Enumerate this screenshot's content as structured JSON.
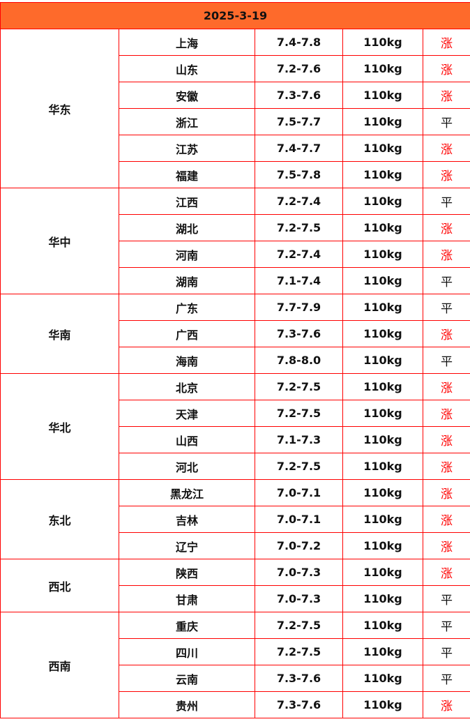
{
  "header": {
    "date": "2025-3-19"
  },
  "colors": {
    "header_bg": "#fe6a2b",
    "border": "#ff0000",
    "up": "#ff0000",
    "flat": "#111111"
  },
  "groups": [
    {
      "region": "华东",
      "rows": [
        {
          "province": "上海",
          "price": "7.4-7.8",
          "weight": "110kg",
          "trend": "涨"
        },
        {
          "province": "山东",
          "price": "7.2-7.6",
          "weight": "110kg",
          "trend": "涨"
        },
        {
          "province": "安徽",
          "price": "7.3-7.6",
          "weight": "110kg",
          "trend": "涨"
        },
        {
          "province": "浙江",
          "price": "7.5-7.7",
          "weight": "110kg",
          "trend": "平"
        },
        {
          "province": "江苏",
          "price": "7.4-7.7",
          "weight": "110kg",
          "trend": "涨"
        },
        {
          "province": "福建",
          "price": "7.5-7.8",
          "weight": "110kg",
          "trend": "涨"
        }
      ]
    },
    {
      "region": "华中",
      "rows": [
        {
          "province": "江西",
          "price": "7.2-7.4",
          "weight": "110kg",
          "trend": "平"
        },
        {
          "province": "湖北",
          "price": "7.2-7.5",
          "weight": "110kg",
          "trend": "涨"
        },
        {
          "province": "河南",
          "price": "7.2-7.4",
          "weight": "110kg",
          "trend": "涨"
        },
        {
          "province": "湖南",
          "price": "7.1-7.4",
          "weight": "110kg",
          "trend": "平"
        }
      ]
    },
    {
      "region": "华南",
      "rows": [
        {
          "province": "广东",
          "price": "7.7-7.9",
          "weight": "110kg",
          "trend": "平"
        },
        {
          "province": "广西",
          "price": "7.3-7.6",
          "weight": "110kg",
          "trend": "涨"
        },
        {
          "province": "海南",
          "price": "7.8-8.0",
          "weight": "110kg",
          "trend": "平"
        }
      ]
    },
    {
      "region": "华北",
      "rows": [
        {
          "province": "北京",
          "price": "7.2-7.5",
          "weight": "110kg",
          "trend": "涨"
        },
        {
          "province": "天津",
          "price": "7.2-7.5",
          "weight": "110kg",
          "trend": "涨"
        },
        {
          "province": "山西",
          "price": "7.1-7.3",
          "weight": "110kg",
          "trend": "涨"
        },
        {
          "province": "河北",
          "price": "7.2-7.5",
          "weight": "110kg",
          "trend": "涨"
        }
      ]
    },
    {
      "region": "东北",
      "rows": [
        {
          "province": "黑龙江",
          "price": "7.0-7.1",
          "weight": "110kg",
          "trend": "涨"
        },
        {
          "province": "吉林",
          "price": "7.0-7.1",
          "weight": "110kg",
          "trend": "涨"
        },
        {
          "province": "辽宁",
          "price": "7.0-7.2",
          "weight": "110kg",
          "trend": "涨"
        }
      ]
    },
    {
      "region": "西北",
      "rows": [
        {
          "province": "陕西",
          "price": "7.0-7.3",
          "weight": "110kg",
          "trend": "涨"
        },
        {
          "province": "甘肃",
          "price": "7.0-7.3",
          "weight": "110kg",
          "trend": "平"
        }
      ]
    },
    {
      "region": "西南",
      "rows": [
        {
          "province": "重庆",
          "price": "7.2-7.5",
          "weight": "110kg",
          "trend": "平"
        },
        {
          "province": "四川",
          "price": "7.2-7.5",
          "weight": "110kg",
          "trend": "平"
        },
        {
          "province": "云南",
          "price": "7.3-7.6",
          "weight": "110kg",
          "trend": "平"
        },
        {
          "province": "贵州",
          "price": "7.3-7.6",
          "weight": "110kg",
          "trend": "涨"
        }
      ]
    }
  ]
}
